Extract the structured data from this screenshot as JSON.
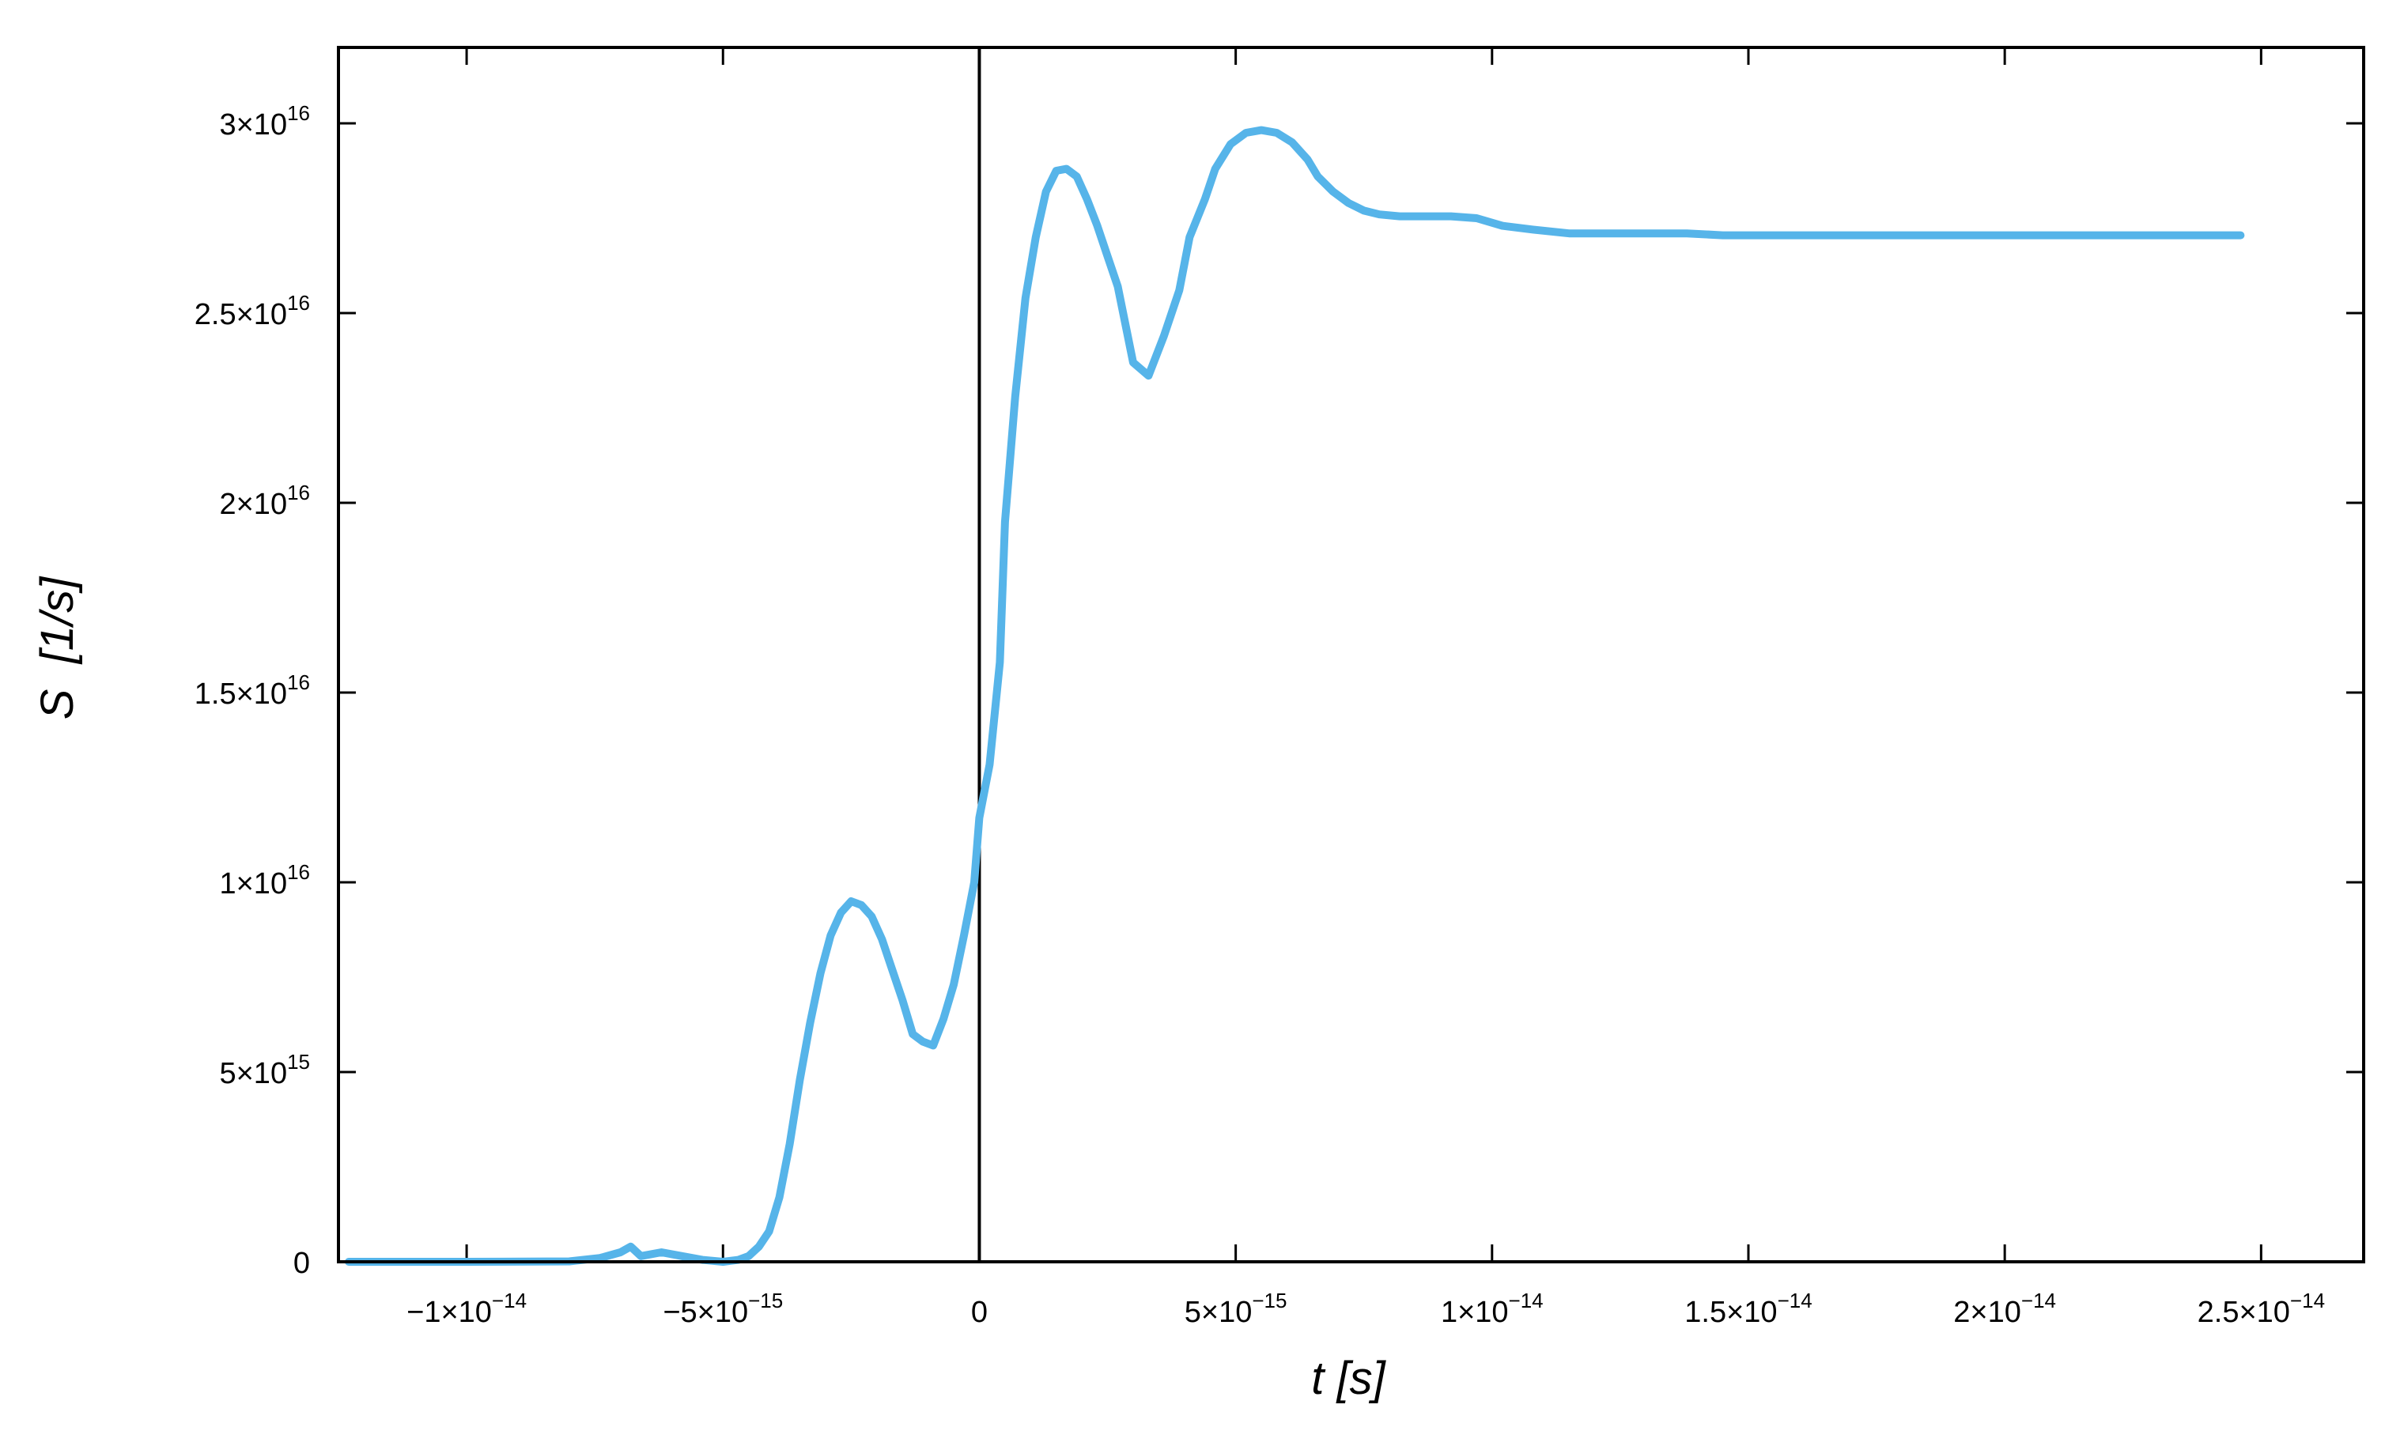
{
  "chart_data": {
    "type": "line",
    "xlabel": "t [s]",
    "ylabel": "S  [1/s]",
    "xlim": [
      -1.25e-14,
      2.7e-14
    ],
    "ylim": [
      0,
      3.2e+16
    ],
    "grid": false,
    "legend": "none",
    "x_ticks": [
      {
        "value": -1e-14,
        "mantissa": "−1×10",
        "exp": "−14"
      },
      {
        "value": -5e-15,
        "mantissa": "−5×10",
        "exp": "−15"
      },
      {
        "value": 0,
        "mantissa": "0",
        "exp": ""
      },
      {
        "value": 5e-15,
        "mantissa": "5×10",
        "exp": "−15"
      },
      {
        "value": 1e-14,
        "mantissa": "1×10",
        "exp": "−14"
      },
      {
        "value": 1.5e-14,
        "mantissa": "1.5×10",
        "exp": "−14"
      },
      {
        "value": 2e-14,
        "mantissa": "2×10",
        "exp": "−14"
      },
      {
        "value": 2.5e-14,
        "mantissa": "2.5×10",
        "exp": "−14"
      }
    ],
    "y_ticks": [
      {
        "value": 0,
        "mantissa": "0",
        "exp": ""
      },
      {
        "value": 5000000000000000.0,
        "mantissa": "5×10",
        "exp": "15"
      },
      {
        "value": 1e+16,
        "mantissa": "1×10",
        "exp": "16"
      },
      {
        "value": 1.5e+16,
        "mantissa": "1.5×10",
        "exp": "16"
      },
      {
        "value": 2e+16,
        "mantissa": "2×10",
        "exp": "16"
      },
      {
        "value": 2.5e+16,
        "mantissa": "2.5×10",
        "exp": "16"
      },
      {
        "value": 3e+16,
        "mantissa": "3×10",
        "exp": "16"
      }
    ],
    "vertical_line_x": 0,
    "series": [
      {
        "color": "#56b4e9",
        "x": [
          -1.23e-14,
          -1e-14,
          -8e-15,
          -7.4e-15,
          -7e-15,
          -6.8e-15,
          -6.6e-15,
          -6.2e-15,
          -5.8e-15,
          -5.4e-15,
          -5e-15,
          -4.7e-15,
          -4.5e-15,
          -4.3e-15,
          -4.1e-15,
          -3.9e-15,
          -3.7e-15,
          -3.5e-15,
          -3.3e-15,
          -3.1e-15,
          -2.9e-15,
          -2.7e-15,
          -2.5e-15,
          -2.3e-15,
          -2.1e-15,
          -1.9e-15,
          -1.7e-15,
          -1.5e-15,
          -1.3e-15,
          -1.1e-15,
          -9e-16,
          -7e-16,
          -5e-16,
          -3e-16,
          -1e-16,
          0,
          2e-16,
          4e-16,
          5e-16,
          7e-16,
          9e-16,
          1.1e-15,
          1.3e-15,
          1.5e-15,
          1.7e-15,
          1.9e-15,
          2.1e-15,
          2.3e-15,
          2.5e-15,
          2.7e-15,
          3e-15,
          3.3e-15,
          3.6e-15,
          3.9e-15,
          4.1e-15,
          4.4e-15,
          4.6e-15,
          4.9e-15,
          5.2e-15,
          5.5e-15,
          5.8e-15,
          6.1e-15,
          6.4e-15,
          6.6e-15,
          6.9e-15,
          7.2e-15,
          7.5e-15,
          7.8e-15,
          8.2e-15,
          8.7e-15,
          9.2e-15,
          9.7e-15,
          1.02e-14,
          1.08e-14,
          1.15e-14,
          1.22e-14,
          1.3e-14,
          1.38e-14,
          1.45e-14,
          1.55e-14,
          1.7e-14,
          1.8e-14,
          1.9e-14,
          2e-14,
          2.2e-14,
          2.35e-14,
          2.46e-14
        ],
        "y": [
          0,
          0,
          10000000000000.0,
          100000000000000.0,
          250000000000000.0,
          400000000000000.0,
          150000000000000.0,
          250000000000000.0,
          150000000000000.0,
          50000000000000.0,
          0,
          50000000000000.0,
          150000000000000.0,
          400000000000000.0,
          800000000000000.0,
          1700000000000000.0,
          3100000000000000.0,
          4800000000000000.0,
          6300000000000000.0,
          7600000000000000.0,
          8600000000000000.0,
          9200000000000000.0,
          9500000000000000.0,
          9400000000000000.0,
          9100000000000000.0,
          8500000000000000.0,
          7700000000000000.0,
          6900000000000000.0,
          6000000000000000.0,
          5800000000000000.0,
          5700000000000000.0,
          6400000000000000.0,
          7300000000000000.0,
          8600000000000000.0,
          1e+16,
          1.17e+16,
          1.31e+16,
          1.58e+16,
          1.95e+16,
          2.28e+16,
          2.54e+16,
          2.7e+16,
          2.82e+16,
          2.875e+16,
          2.88e+16,
          2.86e+16,
          2.8e+16,
          2.73e+16,
          2.65e+16,
          2.57e+16,
          2.37e+16,
          2.335e+16,
          2.44e+16,
          2.56e+16,
          2.7e+16,
          2.8e+16,
          2.88e+16,
          2.945e+16,
          2.975e+16,
          2.982e+16,
          2.975e+16,
          2.95e+16,
          2.905e+16,
          2.86e+16,
          2.82e+16,
          2.79e+16,
          2.77e+16,
          2.76e+16,
          2.755e+16,
          2.755e+16,
          2.755e+16,
          2.75e+16,
          2.73e+16,
          2.72e+16,
          2.71e+16,
          2.71e+16,
          2.71e+16,
          2.71e+16,
          2.705e+16,
          2.705e+16,
          2.705e+16,
          2.705e+16,
          2.705e+16,
          2.705e+16,
          2.705e+16,
          2.705e+16,
          2.705e+16
        ]
      }
    ]
  }
}
